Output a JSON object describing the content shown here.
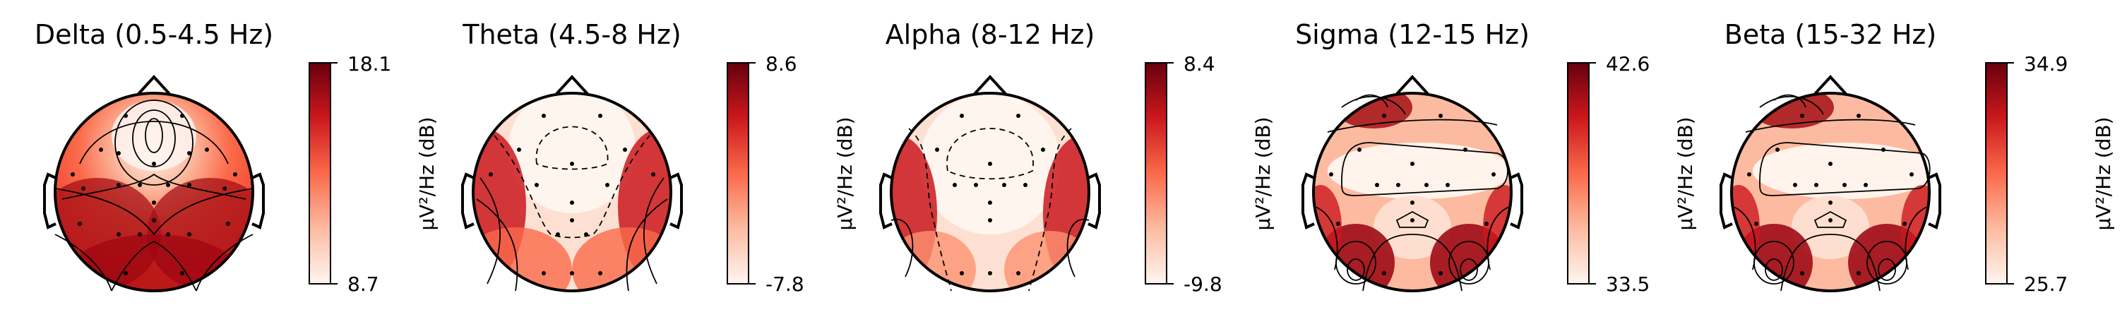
{
  "chart_data": [
    {
      "type": "heatmap",
      "title": "Delta (0.5-4.5 Hz)",
      "colorbar": {
        "max": "18.1",
        "min": "8.7",
        "label": "µV²/Hz (dB)"
      },
      "colormap": "Reds",
      "peak": "frontal-center"
    },
    {
      "type": "heatmap",
      "title": "Theta (4.5-8 Hz)",
      "colorbar": {
        "max": "8.6",
        "min": "-7.8",
        "label": "µV²/Hz (dB)"
      },
      "colormap": "Reds",
      "peak": "temporal-lateral"
    },
    {
      "type": "heatmap",
      "title": "Alpha (8-12 Hz)",
      "colorbar": {
        "max": "8.4",
        "min": "-9.8",
        "label": "µV²/Hz (dB)"
      },
      "colormap": "Reds",
      "peak": "temporal-lateral"
    },
    {
      "type": "heatmap",
      "title": "Sigma (12-15 Hz)",
      "colorbar": {
        "max": "42.6",
        "min": "33.5",
        "label": "µV²/Hz (dB)"
      },
      "colormap": "Reds",
      "peak": "frontal-lateral and posterior"
    },
    {
      "type": "heatmap",
      "title": "Beta (15-32 Hz)",
      "colorbar": {
        "max": "34.9",
        "min": "25.7",
        "label": "µV²/Hz (dB)"
      },
      "colormap": "Reds",
      "peak": "frontal-lateral and posterior"
    }
  ],
  "colors": {
    "reds_low": "#fff5f0",
    "reds_mid": "#fb6a4a",
    "reds_high": "#67000d",
    "outline": "#000000"
  }
}
